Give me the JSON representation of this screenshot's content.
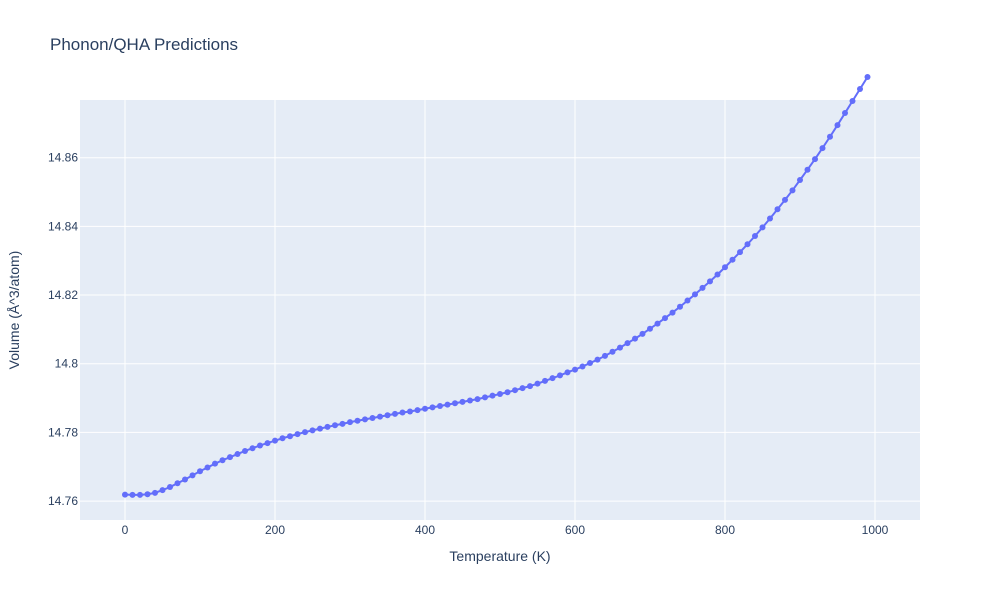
{
  "chart_data": {
    "type": "line",
    "title": "Phonon/QHA Predictions",
    "xlabel": "Temperature (K)",
    "ylabel": "Volume (Å^3/atom)",
    "xlim": [
      -60,
      1060
    ],
    "ylim": [
      14.7545,
      14.8768
    ],
    "x_ticks": [
      0,
      200,
      400,
      600,
      800,
      1000
    ],
    "x_tick_labels": [
      "0",
      "200",
      "400",
      "600",
      "800",
      "1000"
    ],
    "y_ticks": [
      14.76,
      14.78,
      14.8,
      14.82,
      14.84,
      14.86
    ],
    "y_tick_labels": [
      "14.76",
      "14.78",
      "14.8",
      "14.82",
      "14.84",
      "14.86"
    ],
    "grid": true,
    "colors": {
      "background": "#e5ecf6",
      "grid": "#ffffff",
      "series": "#636efa",
      "text": "#2a3f5f"
    },
    "series": [
      {
        "mode": "lines+markers",
        "x": [
          0,
          10,
          20,
          30,
          40,
          50,
          60,
          70,
          80,
          90,
          100,
          110,
          120,
          130,
          140,
          150,
          160,
          170,
          180,
          190,
          200,
          210,
          220,
          230,
          240,
          250,
          260,
          270,
          280,
          290,
          300,
          310,
          320,
          330,
          340,
          350,
          360,
          370,
          380,
          390,
          400,
          410,
          420,
          430,
          440,
          450,
          460,
          470,
          480,
          490,
          500,
          510,
          520,
          530,
          540,
          550,
          560,
          570,
          580,
          590,
          600,
          610,
          620,
          630,
          640,
          650,
          660,
          670,
          680,
          690,
          700,
          710,
          720,
          730,
          740,
          750,
          760,
          770,
          780,
          790,
          800,
          810,
          820,
          830,
          840,
          850,
          860,
          870,
          880,
          890,
          900,
          910,
          920,
          930,
          940,
          950,
          960,
          970,
          980,
          990
        ],
        "y": [
          14.7619,
          14.7618,
          14.7618,
          14.762,
          14.7624,
          14.7632,
          14.7641,
          14.7652,
          14.7663,
          14.7675,
          14.7687,
          14.7698,
          14.7709,
          14.7719,
          14.7728,
          14.7737,
          14.7746,
          14.7754,
          14.7762,
          14.7769,
          14.7776,
          14.7783,
          14.7789,
          14.7795,
          14.7801,
          14.7806,
          14.7811,
          14.7816,
          14.7821,
          14.7825,
          14.783,
          14.7834,
          14.7838,
          14.7842,
          14.7846,
          14.785,
          14.7854,
          14.7858,
          14.7861,
          14.7865,
          14.7869,
          14.7873,
          14.7877,
          14.7881,
          14.7885,
          14.7889,
          14.7893,
          14.7897,
          14.7902,
          14.7907,
          14.7912,
          14.7917,
          14.7923,
          14.7929,
          14.7935,
          14.7942,
          14.795,
          14.7958,
          14.7966,
          14.7975,
          14.7983,
          14.7992,
          14.8002,
          14.8012,
          14.8023,
          14.8035,
          14.8047,
          14.806,
          14.8073,
          14.8087,
          14.8102,
          14.8117,
          14.8133,
          14.8149,
          14.8166,
          14.8184,
          14.8202,
          14.8221,
          14.824,
          14.826,
          14.8281,
          14.8303,
          14.8325,
          14.8348,
          14.8372,
          14.8397,
          14.8423,
          14.845,
          14.8477,
          14.8505,
          14.8535,
          14.8565,
          14.8596,
          14.8628,
          14.8661,
          14.8695,
          14.873,
          14.8765,
          14.88,
          14.8835
        ]
      }
    ]
  }
}
